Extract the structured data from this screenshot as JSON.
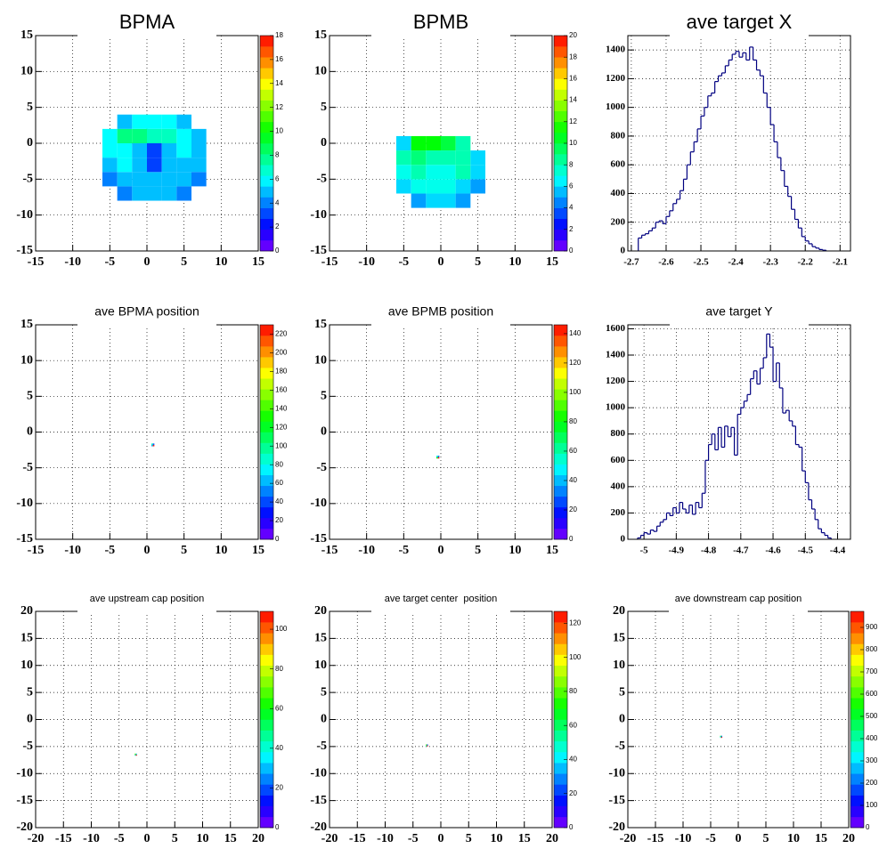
{
  "chart_data": [
    {
      "type": "heatmap",
      "title": "BPMA",
      "palette": "rainbow",
      "grid": true,
      "xbins": [
        -6,
        -4,
        -2,
        0,
        2,
        4,
        6,
        8
      ],
      "ybins": [
        -8,
        -6,
        -4,
        -2,
        0,
        2,
        4
      ],
      "values": [
        [
          null,
          4,
          5,
          5,
          5,
          4,
          null
        ],
        [
          4,
          5,
          5,
          5,
          5,
          5,
          4
        ],
        [
          5,
          6,
          5,
          3,
          5,
          5,
          5
        ],
        [
          6,
          6,
          5,
          3,
          5,
          6,
          5
        ],
        [
          6,
          8,
          8,
          7,
          7,
          6,
          5
        ],
        [
          null,
          5,
          6,
          6,
          6,
          5,
          null
        ]
      ],
      "xlim": [
        -15,
        15
      ],
      "ylim": [
        -15,
        15
      ],
      "xticks": [
        -15,
        -10,
        -5,
        0,
        5,
        10,
        15
      ],
      "yticks": [
        -15,
        -10,
        -5,
        0,
        5,
        10,
        15
      ],
      "zlim": [
        0,
        18
      ],
      "zticks": [
        0,
        2,
        4,
        6,
        8,
        10,
        12,
        14,
        16,
        18
      ]
    },
    {
      "type": "heatmap",
      "title": "BPMB",
      "palette": "rainbow",
      "grid": true,
      "xbins": [
        -6,
        -4,
        -2,
        0,
        2,
        4,
        6
      ],
      "ybins": [
        -9,
        -7,
        -5,
        -3,
        -1,
        1
      ],
      "values": [
        [
          null,
          5,
          6,
          6,
          5,
          null
        ],
        [
          6,
          7,
          7,
          7,
          6,
          5
        ],
        [
          7,
          8,
          7,
          7,
          8,
          6
        ],
        [
          8,
          9,
          8,
          8,
          8,
          6
        ],
        [
          6,
          11,
          11,
          10,
          8,
          null
        ]
      ],
      "xlim": [
        -15,
        15
      ],
      "ylim": [
        -15,
        15
      ],
      "xticks": [
        -15,
        -10,
        -5,
        0,
        5,
        10,
        15
      ],
      "yticks": [
        -15,
        -10,
        -5,
        0,
        5,
        10,
        15
      ],
      "zlim": [
        0,
        20
      ],
      "zticks": [
        0,
        2,
        4,
        6,
        8,
        10,
        12,
        14,
        16,
        18,
        20
      ]
    },
    {
      "type": "histogram",
      "title": "ave target X",
      "color": "#000080",
      "grid": true,
      "bins": [
        -2.68,
        -2.67,
        -2.66,
        -2.65,
        -2.64,
        -2.63,
        -2.62,
        -2.61,
        -2.6,
        -2.59,
        -2.58,
        -2.57,
        -2.56,
        -2.55,
        -2.54,
        -2.53,
        -2.52,
        -2.51,
        -2.5,
        -2.49,
        -2.48,
        -2.47,
        -2.46,
        -2.45,
        -2.44,
        -2.43,
        -2.42,
        -2.41,
        -2.4,
        -2.39,
        -2.38,
        -2.37,
        -2.36,
        -2.35,
        -2.34,
        -2.33,
        -2.32,
        -2.31,
        -2.3,
        -2.29,
        -2.28,
        -2.27,
        -2.26,
        -2.25,
        -2.24,
        -2.23,
        -2.22,
        -2.21,
        -2.2,
        -2.19,
        -2.18,
        -2.17,
        -2.16,
        -2.15,
        -2.14
      ],
      "values": [
        90,
        110,
        120,
        140,
        160,
        200,
        210,
        190,
        240,
        280,
        330,
        360,
        420,
        500,
        600,
        690,
        760,
        850,
        940,
        1000,
        1080,
        1100,
        1180,
        1220,
        1240,
        1290,
        1330,
        1370,
        1390,
        1350,
        1380,
        1330,
        1420,
        1330,
        1260,
        1220,
        1100,
        1000,
        880,
        760,
        650,
        560,
        450,
        380,
        290,
        220,
        160,
        100,
        70,
        50,
        30,
        20,
        10,
        5
      ],
      "xlim": [
        -2.71,
        -2.07
      ],
      "ylim": [
        0,
        1500
      ],
      "xticks": [
        -2.7,
        -2.6,
        -2.5,
        -2.4,
        -2.3,
        -2.2,
        -2.1
      ],
      "yticks": [
        0,
        200,
        400,
        600,
        800,
        1000,
        1200,
        1400
      ]
    },
    {
      "type": "heatmap",
      "title": "ave BPMA position",
      "palette": "rainbow",
      "grid": true,
      "xbins": [
        0.6,
        0.8,
        1.0
      ],
      "ybins": [
        -2.0,
        -1.8,
        -1.6
      ],
      "values": [
        [
          60,
          225
        ],
        [
          90,
          40
        ]
      ],
      "xlim": [
        -15,
        15
      ],
      "ylim": [
        -15,
        15
      ],
      "xticks": [
        -15,
        -10,
        -5,
        0,
        5,
        10,
        15
      ],
      "yticks": [
        -15,
        -10,
        -5,
        0,
        5,
        10,
        15
      ],
      "zlim": [
        0,
        230
      ],
      "zticks": [
        0,
        20,
        40,
        60,
        80,
        100,
        120,
        140,
        160,
        180,
        200,
        220
      ]
    },
    {
      "type": "heatmap",
      "title": "ave BPMB position",
      "palette": "rainbow",
      "grid": true,
      "xbins": [
        -0.6,
        -0.4,
        -0.2
      ],
      "ybins": [
        -3.7,
        -3.5,
        -3.3
      ],
      "values": [
        [
          80,
          145
        ],
        [
          50,
          30
        ]
      ],
      "xlim": [
        -15,
        15
      ],
      "ylim": [
        -15,
        15
      ],
      "xticks": [
        -15,
        -10,
        -5,
        0,
        5,
        10,
        15
      ],
      "yticks": [
        -15,
        -10,
        -5,
        0,
        5,
        10,
        15
      ],
      "zlim": [
        0,
        146
      ],
      "zticks": [
        0,
        20,
        40,
        60,
        80,
        100,
        120,
        140
      ]
    },
    {
      "type": "histogram",
      "title": "ave target Y",
      "color": "#000080",
      "grid": true,
      "bins": [
        -5.02,
        -5.01,
        -5,
        -4.99,
        -4.98,
        -4.97,
        -4.96,
        -4.95,
        -4.94,
        -4.93,
        -4.92,
        -4.91,
        -4.9,
        -4.89,
        -4.88,
        -4.87,
        -4.86,
        -4.85,
        -4.84,
        -4.83,
        -4.82,
        -4.81,
        -4.8,
        -4.79,
        -4.78,
        -4.77,
        -4.76,
        -4.75,
        -4.74,
        -4.73,
        -4.72,
        -4.71,
        -4.7,
        -4.69,
        -4.68,
        -4.67,
        -4.66,
        -4.65,
        -4.64,
        -4.63,
        -4.62,
        -4.61,
        -4.6,
        -4.59,
        -4.58,
        -4.57,
        -4.56,
        -4.55,
        -4.54,
        -4.53,
        -4.52,
        -4.51,
        -4.5,
        -4.49,
        -4.48,
        -4.47,
        -4.46,
        -4.45,
        -4.44,
        -4.43,
        -4.42
      ],
      "values": [
        10,
        30,
        50,
        40,
        70,
        60,
        100,
        130,
        150,
        200,
        180,
        240,
        200,
        280,
        230,
        200,
        260,
        190,
        280,
        240,
        350,
        600,
        720,
        800,
        680,
        850,
        700,
        860,
        780,
        850,
        640,
        950,
        1000,
        1050,
        1100,
        1220,
        1280,
        1180,
        1300,
        1380,
        1560,
        1460,
        1200,
        1340,
        1150,
        960,
        980,
        900,
        860,
        720,
        700,
        520,
        430,
        300,
        230,
        150,
        80,
        50,
        30,
        10
      ],
      "xlim": [
        -5.05,
        -4.36
      ],
      "ylim": [
        0,
        1630
      ],
      "xticks": [
        -5,
        -4.9,
        -4.8,
        -4.7,
        -4.6,
        -4.5,
        -4.4
      ],
      "yticks": [
        0,
        200,
        400,
        600,
        800,
        1000,
        1200,
        1400,
        1600
      ]
    },
    {
      "type": "heatmap",
      "title": "ave upstream cap position",
      "palette": "rainbow",
      "grid": true,
      "xbins": [
        -2.2,
        -2.0,
        -1.8
      ],
      "ybins": [
        -6.7,
        -6.5,
        -6.3
      ],
      "values": [
        [
          40,
          108
        ],
        [
          70,
          30
        ]
      ],
      "xlim": [
        -20,
        20
      ],
      "ylim": [
        -20,
        20
      ],
      "xticks": [
        -20,
        -15,
        -10,
        -5,
        0,
        5,
        10,
        15,
        20
      ],
      "yticks": [
        -20,
        -15,
        -10,
        -5,
        0,
        5,
        10,
        15,
        20
      ],
      "zlim": [
        0,
        109
      ],
      "zticks": [
        0,
        20,
        40,
        60,
        80,
        100
      ]
    },
    {
      "type": "heatmap",
      "title": "ave target center  position",
      "palette": "rainbow",
      "grid": true,
      "xbins": [
        -2.7,
        -2.5,
        -2.3
      ],
      "ybins": [
        -5.0,
        -4.8,
        -4.6
      ],
      "values": [
        [
          50,
          125
        ],
        [
          80,
          20
        ]
      ],
      "xlim": [
        -20,
        20
      ],
      "ylim": [
        -20,
        20
      ],
      "xticks": [
        -20,
        -15,
        -10,
        -5,
        0,
        5,
        10,
        15,
        20
      ],
      "yticks": [
        -20,
        -15,
        -10,
        -5,
        0,
        5,
        10,
        15,
        20
      ],
      "zlim": [
        0,
        127
      ],
      "zticks": [
        0,
        20,
        40,
        60,
        80,
        100,
        120
      ]
    },
    {
      "type": "heatmap",
      "title": "ave downstream cap position",
      "palette": "rainbow",
      "grid": true,
      "xbins": [
        -3.3,
        -3.1,
        -2.9
      ],
      "ybins": [
        -3.4,
        -3.2,
        -3.0
      ],
      "values": [
        [
          300,
          960
        ],
        [
          500,
          200
        ]
      ],
      "xlim": [
        -20,
        20
      ],
      "ylim": [
        -20,
        20
      ],
      "xticks": [
        -20,
        -15,
        -10,
        -5,
        0,
        5,
        10,
        15,
        20
      ],
      "yticks": [
        -20,
        -15,
        -10,
        -5,
        0,
        5,
        10,
        15,
        20
      ],
      "zlim": [
        0,
        972
      ],
      "zticks": [
        0,
        100,
        200,
        300,
        400,
        500,
        600,
        700,
        800,
        900
      ]
    }
  ]
}
